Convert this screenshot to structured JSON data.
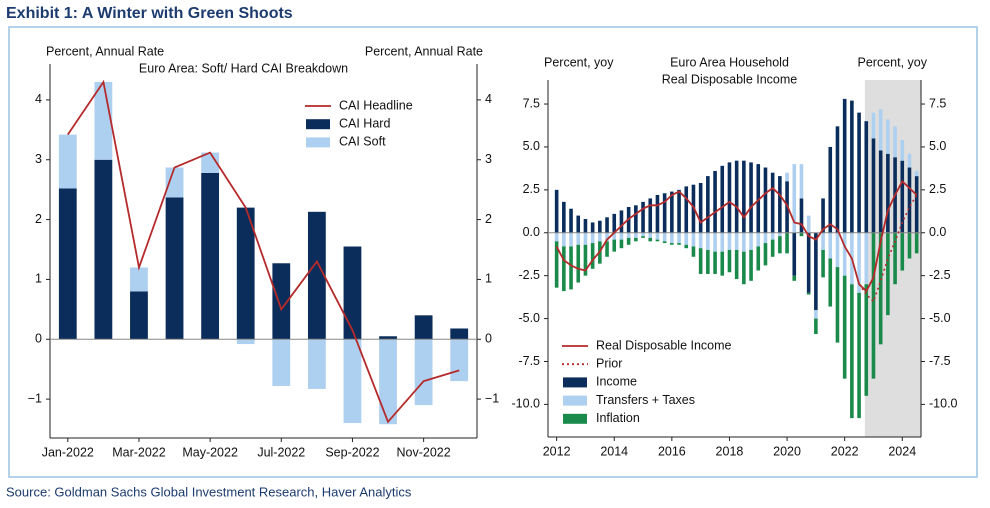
{
  "header": {
    "title": "Exhibit 1: A Winter with Green Shoots"
  },
  "footer": {
    "source": "Source: Goldman Sachs Global Investment Research, Haver Analytics"
  },
  "chart_data": [
    {
      "type": "bar",
      "stacked": true,
      "title": "Euro Area: Soft/ Hard CAI Breakdown",
      "ylabel": "Percent, Annual Rate",
      "y2label": "Percent, Annual Rate",
      "categories": [
        "Jan-2022",
        null,
        "Mar-2022",
        null,
        "May-2022",
        null,
        "Jul-2022",
        null,
        "Sep-2022",
        null,
        "Nov-2022",
        null
      ],
      "series": [
        {
          "name": "CAI Headline",
          "type": "line",
          "color": "#b52a2a",
          "values": [
            3.42,
            4.3,
            1.2,
            2.87,
            3.12,
            2.2,
            0.5,
            1.3,
            0.15,
            -1.38,
            -0.7,
            -0.52
          ]
        },
        {
          "name": "CAI Hard",
          "type": "bar",
          "color": "#0b2d5b",
          "values": [
            2.52,
            3.0,
            0.8,
            2.37,
            2.78,
            2.2,
            1.27,
            2.13,
            1.55,
            0.05,
            0.4,
            0.18
          ]
        },
        {
          "name": "CAI Soft",
          "type": "bar",
          "color": "#aed0f0",
          "values": [
            0.9,
            1.3,
            0.4,
            0.5,
            0.34,
            -0.08,
            -0.78,
            -0.83,
            -1.4,
            -1.42,
            -1.1,
            -0.7
          ]
        }
      ],
      "ylim": [
        -1.65,
        4.6
      ],
      "yticks": [
        {
          "value": -1,
          "label": "−1"
        },
        0,
        1,
        2,
        3,
        4
      ],
      "y2lim": [
        -1.65,
        4.6
      ],
      "y2ticks": [
        {
          "value": -1,
          "label": "−1"
        },
        0,
        1,
        2,
        3,
        4
      ],
      "legend": "upper right"
    },
    {
      "type": "bar",
      "stacked": true,
      "title": [
        "Euro Area Household",
        "Real Disposable Income"
      ],
      "ylabel": "Percent, yoy",
      "y2label": "Percent, yoy",
      "x": [
        2012,
        2012.25,
        2012.5,
        2012.75,
        2013,
        2013.25,
        2013.5,
        2013.75,
        2014,
        2014.25,
        2014.5,
        2014.75,
        2015,
        2015.25,
        2015.5,
        2015.75,
        2016,
        2016.25,
        2016.5,
        2016.75,
        2017,
        2017.25,
        2017.5,
        2017.75,
        2018,
        2018.25,
        2018.5,
        2018.75,
        2019,
        2019.25,
        2019.5,
        2019.75,
        2020,
        2020.25,
        2020.5,
        2020.75,
        2021,
        2021.25,
        2021.5,
        2021.75,
        2022,
        2022.25,
        2022.5,
        2022.75,
        2023,
        2023.25,
        2023.5,
        2023.75,
        2024,
        2024.25,
        2024.5
      ],
      "series": [
        {
          "name": "Real Disposable Income",
          "type": "line",
          "color": "#b52a2a",
          "values": [
            -0.8,
            -1.6,
            -1.9,
            -2.1,
            -2.2,
            -1.6,
            -1.1,
            -0.4,
            0.0,
            0.4,
            0.8,
            1.1,
            1.4,
            1.6,
            1.6,
            1.8,
            2.2,
            2.4,
            2.0,
            1.5,
            0.6,
            0.9,
            1.2,
            1.5,
            1.8,
            1.5,
            0.9,
            1.5,
            1.9,
            2.3,
            2.6,
            2.2,
            1.6,
            0.6,
            0.5,
            -0.2,
            -0.4,
            0.2,
            0.5,
            0.2,
            -0.8,
            -1.5,
            -3.0,
            -3.4,
            -2.6,
            -0.5,
            1.3,
            2.2,
            3.0,
            2.6,
            2.2
          ]
        },
        {
          "name": "Prior",
          "type": "line",
          "style": "dotted",
          "color": "#b52a2a",
          "values": [
            null,
            null,
            null,
            null,
            null,
            null,
            null,
            null,
            null,
            null,
            null,
            null,
            null,
            null,
            null,
            null,
            null,
            null,
            null,
            null,
            null,
            null,
            null,
            null,
            null,
            null,
            null,
            null,
            null,
            null,
            null,
            null,
            null,
            null,
            null,
            null,
            null,
            null,
            null,
            null,
            null,
            null,
            -3.0,
            -3.6,
            -4.0,
            -2.8,
            -1.5,
            -0.5,
            0.6,
            1.5,
            2.2
          ]
        },
        {
          "name": "Income",
          "type": "bar",
          "color": "#0b2d5b",
          "values": [
            2.5,
            1.8,
            1.4,
            1.0,
            0.8,
            0.6,
            0.7,
            0.9,
            1.1,
            1.3,
            1.5,
            1.6,
            1.8,
            2.0,
            2.2,
            2.3,
            2.4,
            2.5,
            2.7,
            2.8,
            2.9,
            3.3,
            3.6,
            3.9,
            4.1,
            4.2,
            4.2,
            4.1,
            4.0,
            3.8,
            3.5,
            3.3,
            3.0,
            -2.5,
            2.0,
            -3.5,
            -4.5,
            2.0,
            5.0,
            6.2,
            7.8,
            7.7,
            7.0,
            6.5,
            5.5,
            4.8,
            4.6,
            4.4,
            4.2,
            3.8,
            3.3
          ]
        },
        {
          "name": "Transfers + Taxes",
          "type": "bar",
          "color": "#aed0f0",
          "values": [
            -0.5,
            -0.8,
            -0.8,
            -0.7,
            -0.7,
            -0.6,
            -0.5,
            -0.5,
            -0.4,
            -0.4,
            -0.3,
            -0.3,
            -0.2,
            -0.3,
            -0.4,
            -0.5,
            -0.6,
            -0.6,
            -0.7,
            -0.8,
            -0.9,
            -1.0,
            -1.1,
            -1.1,
            -1.0,
            -1.0,
            -1.1,
            -1.0,
            -0.8,
            -0.6,
            -0.4,
            -0.2,
            0.5,
            4.0,
            2.0,
            1.0,
            -0.5,
            -1.0,
            -1.5,
            -2.0,
            -2.5,
            -3.0,
            -3.5,
            -3.0,
            1.5,
            2.4,
            2.0,
            1.8,
            1.2,
            0.8,
            0.3
          ]
        },
        {
          "name": "Inflation",
          "type": "bar",
          "color": "#1a8a4a",
          "values": [
            -2.7,
            -2.6,
            -2.5,
            -2.2,
            -1.8,
            -1.5,
            -1.3,
            -0.9,
            -0.7,
            -0.5,
            -0.4,
            -0.2,
            -0.1,
            -0.2,
            -0.1,
            -0.1,
            -0.1,
            -0.1,
            -0.2,
            -0.6,
            -1.5,
            -1.4,
            -1.3,
            -1.4,
            -1.3,
            -1.7,
            -1.9,
            -1.8,
            -1.4,
            -1.3,
            -1.0,
            -1.0,
            -1.2,
            -0.3,
            -0.2,
            -0.1,
            -0.9,
            -1.6,
            -2.8,
            -4.4,
            -6.0,
            -7.8,
            -7.3,
            -6.5,
            -8.5,
            -6.5,
            -4.8,
            -3.0,
            -2.2,
            -1.5,
            -1.2
          ]
        }
      ],
      "shade": [
        2022.7,
        2024.65
      ],
      "xlim": [
        2011.7,
        2024.65
      ],
      "xticks": [
        2012,
        2014,
        2016,
        2018,
        2020,
        2022,
        2024
      ],
      "ylim": [
        -11.9,
        8.9
      ],
      "yticks": [
        {
          "value": -10,
          "label": "-10.0"
        },
        -7.5,
        {
          "value": -5,
          "label": "-5.0"
        },
        -2.5,
        {
          "value": 0,
          "label": "0.0"
        },
        2.5,
        {
          "value": 5,
          "label": "5.0"
        },
        7.5
      ],
      "y2lim": [
        -11.9,
        8.9
      ],
      "y2ticks": [
        {
          "value": -10,
          "label": "-10.0"
        },
        -7.5,
        {
          "value": -5,
          "label": "-5.0"
        },
        -2.5,
        {
          "value": 0,
          "label": "0.0"
        },
        2.5,
        {
          "value": 5,
          "label": "5.0"
        },
        7.5
      ],
      "legend": "lower left"
    }
  ]
}
